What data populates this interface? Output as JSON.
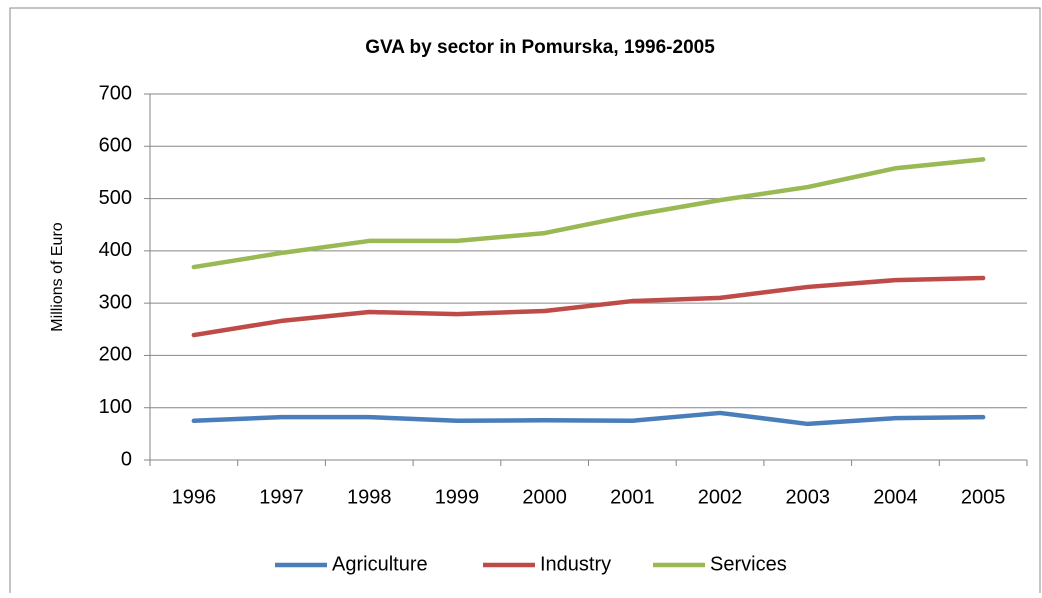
{
  "chart_data": {
    "type": "line",
    "title": "GVA by sector in Pomurska, 1996-2005",
    "y_label": "Millions of Euro",
    "categories": [
      "1996",
      "1997",
      "1998",
      "1999",
      "2000",
      "2001",
      "2002",
      "2003",
      "2004",
      "2005"
    ],
    "series": [
      {
        "name": "Agriculture",
        "color": "#4a7ebb",
        "values": [
          75,
          82,
          82,
          75,
          76,
          75,
          90,
          69,
          80,
          82
        ]
      },
      {
        "name": "Industry",
        "color": "#be4b48",
        "values": [
          239,
          266,
          283,
          279,
          285,
          304,
          310,
          331,
          344,
          348
        ]
      },
      {
        "name": "Services",
        "color": "#98b954",
        "values": [
          369,
          396,
          419,
          419,
          434,
          468,
          497,
          522,
          558,
          575
        ]
      }
    ],
    "ylim": [
      0,
      700
    ],
    "yticks": [
      0,
      100,
      200,
      300,
      400,
      500,
      600,
      700
    ],
    "grid": true,
    "legend": "bottom"
  }
}
